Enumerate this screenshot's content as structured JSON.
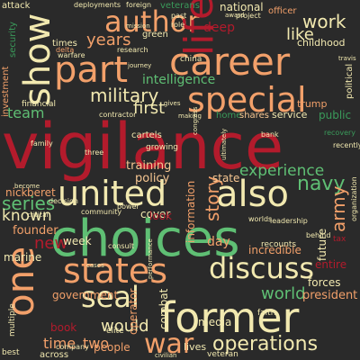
{
  "words": {
    "vigilance": "vigilance",
    "choices": "choices",
    "former": "former",
    "career": "career",
    "special": "special",
    "united": "united",
    "also": "also",
    "states": "states",
    "discuss": "discuss",
    "part": "part",
    "author": "author",
    "life": "life",
    "show": "show",
    "one": "one",
    "seal": "seal",
    "war": "war",
    "operations": "operations",
    "military": "military",
    "years": "years",
    "work": "work",
    "like": "like",
    "navy": "navy",
    "army": "army",
    "story": "story",
    "experience": "experience",
    "series": "series",
    "known": "known",
    "team": "team",
    "intelligence": "intelligence",
    "first": "first",
    "world": "world",
    "would": "would",
    "new": "new",
    "time": "time",
    "two": "two",
    "policy": "policy",
    "training": "training",
    "nick": "nick",
    "beret": "beret",
    "founder": "founder",
    "marine": "marine",
    "government": "government",
    "week": "week",
    "cover": "cover",
    "state": "state",
    "information": "information",
    "future": "future",
    "day": "day",
    "president": "president",
    "forces": "forces",
    "entire": "entire",
    "incredible": "incredible",
    "media": "media",
    "operator": "operator",
    "combat": "combat",
    "book": "book",
    "people": "people",
    "across": "across",
    "lives": "lives",
    "elite": "elite",
    "veteran": "veteran",
    "deep": "deep",
    "national": "national",
    "officer": "officer",
    "childhood": "childhood",
    "political": "political",
    "trump": "trump",
    "public": "public",
    "service": "service",
    "home": "home",
    "shares": "shares",
    "cartels": "cartels",
    "growing": "growing",
    "china": "china",
    "green": "green",
    "investment": "investment",
    "security": "security",
    "veterans": "veterans",
    "foreign": "foreign",
    "deployments": "deployments",
    "attack": "attack",
    "times": "times",
    "warfare": "warfare",
    "financial": "financial",
    "family": "family",
    "contractor": "contractor",
    "research": "research",
    "project": "project",
    "recovery": "recovery",
    "recently": "recently",
    "decision": "decision",
    "community": "community",
    "power": "power",
    "consult": "consult",
    "look": "look",
    "worlds": "worlds",
    "leadership": "leadership",
    "recounts": "recounts",
    "behind": "behind",
    "tax": "tax",
    "organization": "organization",
    "faith": "faith",
    "best": "best",
    "company": "company",
    "civilian": "civilian",
    "multiple": "multiple",
    "mission": "mission",
    "making": "making",
    "congress": "congress",
    "ultimately": "ultimately",
    "become": "become",
    "three": "three",
    "bank": "bank",
    "critical": "critical",
    "performance": "performance",
    "cases": "cases",
    "journey": "journey",
    "past": "past",
    "role": "role",
    "delta": "delta",
    "travis": "travis",
    "gives": "gives",
    "award": "award"
  },
  "colors": {
    "background": "#2a2a2a",
    "red": "#b31b2c",
    "orange": "#f2a06a",
    "cream": "#f2e9b0",
    "green": "#5fbf74"
  }
}
